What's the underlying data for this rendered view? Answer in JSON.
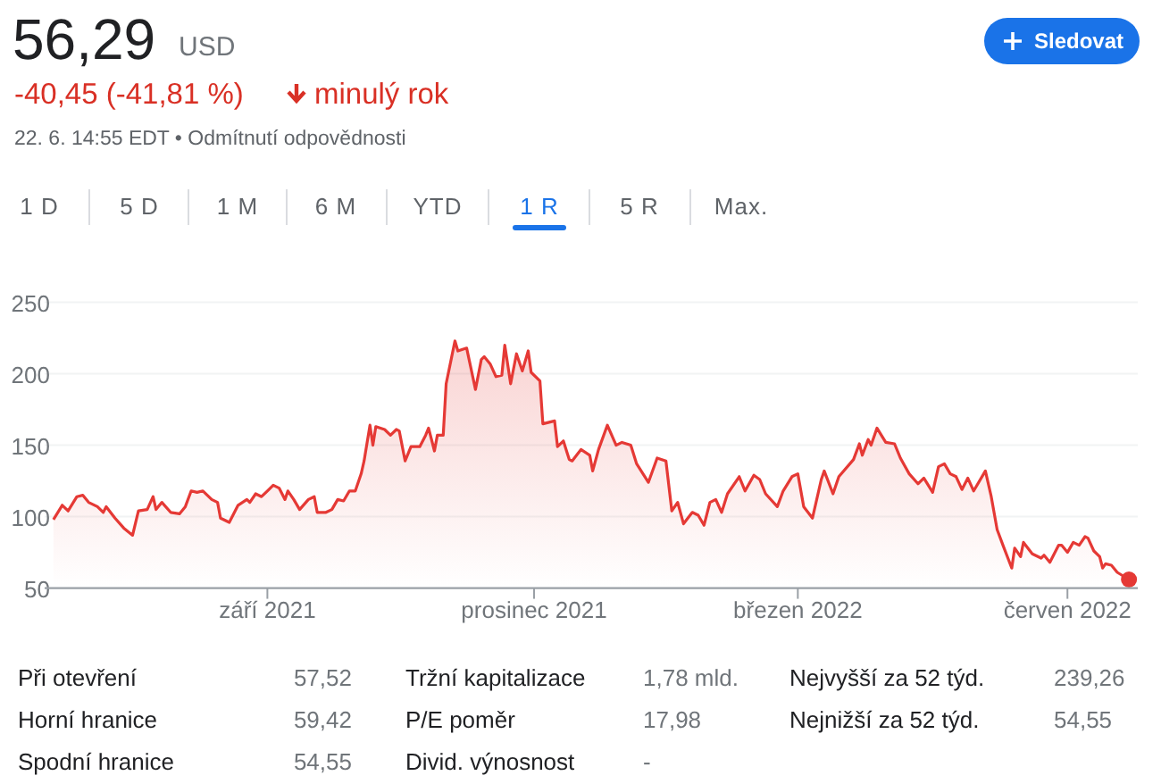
{
  "chart_data": {
    "type": "area",
    "title": "56,29",
    "grid": "y",
    "xlim": [
      "2021-06-17",
      "2022-06-25"
    ],
    "ylim": [
      50,
      250
    ],
    "yticks": [
      50,
      100,
      150,
      200,
      250
    ],
    "xticks": [
      {
        "value": "2021-09-01",
        "label": "září 2021"
      },
      {
        "value": "2021-12-01",
        "label": "prosinec 2021"
      },
      {
        "value": "2022-03-01",
        "label": "březen 2022"
      },
      {
        "value": "2022-06-01",
        "label": "červen 2022"
      }
    ],
    "annotations": [
      "USD",
      "-40,45 (-41,81 %)",
      "minulý rok",
      "22. 6. 14:55 EDT • Odmítnutí odpovědnosti",
      "Sledovat",
      "1 D",
      "5 D",
      "1 M",
      "6 M",
      "YTD",
      "1 R",
      "5 R",
      "Max.",
      "Při otevření",
      "57,52",
      "Tržní kapitalizace",
      "1,78 mld.",
      "Nejvyšší za 52 týd.",
      "239,26",
      "Horní hranice",
      "59,42",
      "P/E poměr",
      "17,98",
      "Nejnižší za 52 týd.",
      "54,55",
      "Spodní hranice",
      "54,55",
      "Divid. výnosnost",
      "-"
    ],
    "series": [
      {
        "color": "#e53935",
        "x": [
          "2021-06-20",
          "2021-06-23",
          "2021-06-25",
          "2021-06-28",
          "2021-06-30",
          "2021-07-02",
          "2021-07-05",
          "2021-07-07",
          "2021-07-08",
          "2021-07-11",
          "2021-07-14",
          "2021-07-17",
          "2021-07-19",
          "2021-07-22",
          "2021-07-24",
          "2021-07-25",
          "2021-07-27",
          "2021-07-30",
          "2021-08-02",
          "2021-08-04",
          "2021-08-06",
          "2021-08-08",
          "2021-08-10",
          "2021-08-13",
          "2021-08-15",
          "2021-08-16",
          "2021-08-19",
          "2021-08-22",
          "2021-08-25",
          "2021-08-26",
          "2021-08-28",
          "2021-08-30",
          "2021-09-01",
          "2021-09-03",
          "2021-09-05",
          "2021-09-07",
          "2021-09-08",
          "2021-09-10",
          "2021-09-12",
          "2021-09-15",
          "2021-09-17",
          "2021-09-18",
          "2021-09-21",
          "2021-09-23",
          "2021-09-25",
          "2021-09-27",
          "2021-09-29",
          "2021-10-01",
          "2021-10-03",
          "2021-10-04",
          "2021-10-06",
          "2021-10-07",
          "2021-10-08",
          "2021-10-11",
          "2021-10-13",
          "2021-10-15",
          "2021-10-16",
          "2021-10-18",
          "2021-10-20",
          "2021-10-23",
          "2021-10-25",
          "2021-10-26",
          "2021-10-28",
          "2021-10-29",
          "2021-10-31",
          "2021-11-01",
          "2021-11-04",
          "2021-11-05",
          "2021-11-08",
          "2021-11-11",
          "2021-11-13",
          "2021-11-14",
          "2021-11-16",
          "2021-11-18",
          "2021-11-20",
          "2021-11-21",
          "2021-11-23",
          "2021-11-25",
          "2021-11-27",
          "2021-11-29",
          "2021-11-30",
          "2021-12-03",
          "2021-12-04",
          "2021-12-08",
          "2021-12-09",
          "2021-12-11",
          "2021-12-13",
          "2021-12-14",
          "2021-12-17",
          "2021-12-20",
          "2021-12-21",
          "2021-12-23",
          "2021-12-26",
          "2021-12-29",
          "2021-12-31",
          "2022-01-03",
          "2022-01-05",
          "2022-01-09",
          "2022-01-12",
          "2022-01-15",
          "2022-01-17",
          "2022-01-19",
          "2022-01-21",
          "2022-01-24",
          "2022-01-26",
          "2022-01-28",
          "2022-01-30",
          "2022-02-01",
          "2022-02-03",
          "2022-02-05",
          "2022-02-09",
          "2022-02-11",
          "2022-02-14",
          "2022-02-16",
          "2022-02-18",
          "2022-02-22",
          "2022-02-24",
          "2022-02-27",
          "2022-03-01",
          "2022-03-03",
          "2022-03-06",
          "2022-03-09",
          "2022-03-10",
          "2022-03-13",
          "2022-03-15",
          "2022-03-20",
          "2022-03-22",
          "2022-03-23",
          "2022-03-25",
          "2022-03-26",
          "2022-03-28",
          "2022-03-31",
          "2022-04-03",
          "2022-04-05",
          "2022-04-08",
          "2022-04-11",
          "2022-04-13",
          "2022-04-16",
          "2022-04-18",
          "2022-04-20",
          "2022-04-22",
          "2022-04-24",
          "2022-04-26",
          "2022-04-28",
          "2022-04-30",
          "2022-05-04",
          "2022-05-06",
          "2022-05-08",
          "2022-05-10",
          "2022-05-13",
          "2022-05-14",
          "2022-05-16",
          "2022-05-17",
          "2022-05-20",
          "2022-05-23",
          "2022-05-24",
          "2022-05-26",
          "2022-05-29",
          "2022-05-30",
          "2022-06-01",
          "2022-06-03",
          "2022-06-05",
          "2022-06-07",
          "2022-06-08",
          "2022-06-10",
          "2022-06-12",
          "2022-06-13",
          "2022-06-14",
          "2022-06-16",
          "2022-06-18",
          "2022-06-22"
        ],
        "values": [
          98,
          108,
          104,
          114,
          115,
          110,
          107,
          103,
          107,
          99,
          92,
          87,
          104,
          105,
          114,
          105,
          110,
          103,
          102,
          107,
          118,
          117,
          118,
          112,
          110,
          99,
          96,
          108,
          112,
          110,
          116,
          114,
          118,
          122,
          120,
          112,
          118,
          112,
          105,
          112,
          114,
          103,
          103,
          105,
          112,
          111,
          118,
          118,
          130,
          139,
          164,
          150,
          163,
          161,
          157,
          161,
          160,
          139,
          149,
          149,
          157,
          162,
          146,
          157,
          157,
          193,
          223,
          216,
          218,
          189,
          210,
          212,
          207,
          198,
          199,
          220,
          193,
          214,
          202,
          216,
          201,
          195,
          165,
          167,
          149,
          153,
          140,
          139,
          147,
          143,
          132,
          147,
          164,
          150,
          152,
          150,
          137,
          124,
          141,
          139,
          104,
          110,
          95,
          103,
          101,
          94,
          110,
          112,
          103,
          116,
          128,
          118,
          129,
          126,
          116,
          107,
          118,
          128,
          130,
          107,
          99,
          126,
          132,
          116,
          128,
          140,
          151,
          143,
          154,
          150,
          162,
          152,
          151,
          141,
          130,
          123,
          127,
          117,
          135,
          137,
          130,
          128,
          119,
          127,
          118,
          132,
          114,
          91,
          80,
          64,
          78,
          72,
          82,
          74,
          71,
          73,
          68,
          80,
          80,
          75,
          82,
          80,
          86,
          85,
          76,
          72,
          64,
          67,
          66,
          61,
          56
        ]
      },
      {
        "type": "scatter",
        "color": "#e53935",
        "marker": "circle",
        "x": [
          "2022-06-22"
        ],
        "values": [
          56
        ]
      }
    ]
  }
}
